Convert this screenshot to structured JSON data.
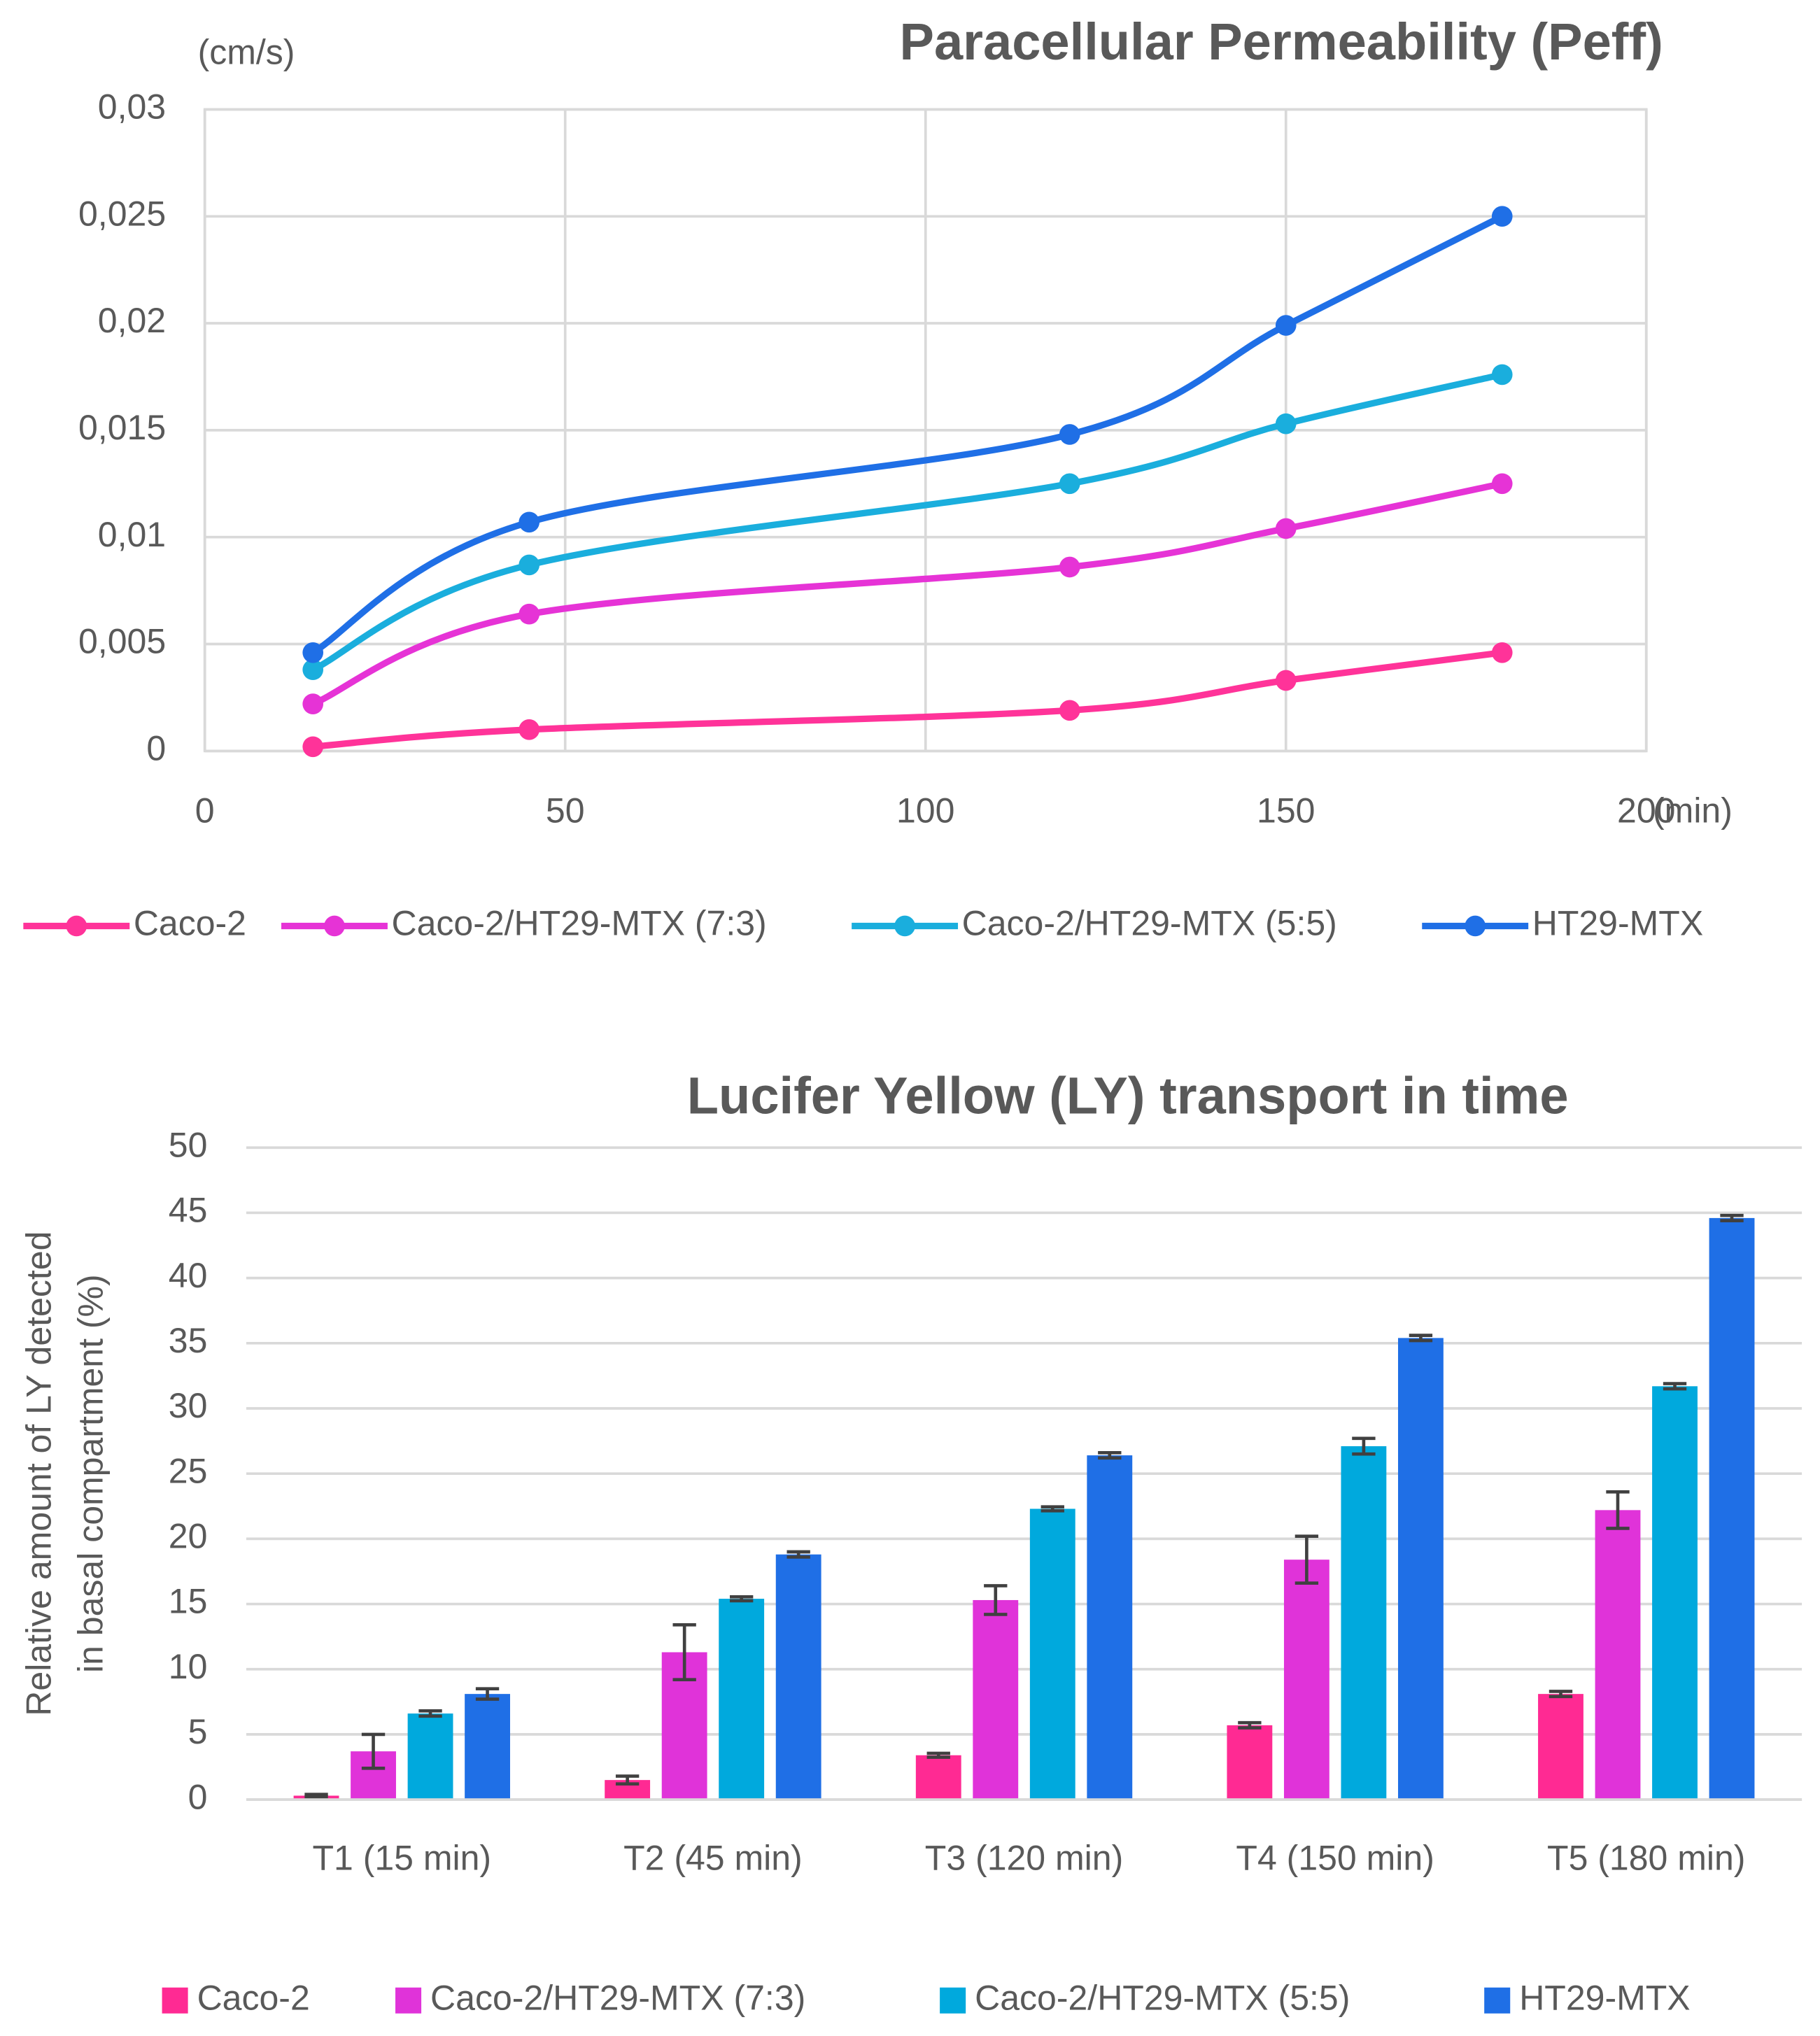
{
  "chart_data": [
    {
      "type": "line",
      "title": "Paracellular Permeability (Peff)",
      "ylabel": "(cm/s)",
      "xlabel": "(min)",
      "x": [
        15,
        45,
        120,
        150,
        180
      ],
      "xlim": [
        0,
        200
      ],
      "xticks": [
        0,
        50,
        100,
        150,
        200
      ],
      "ylim": [
        0,
        0.03
      ],
      "yticks": [
        0,
        {
          "value": 0.005,
          "label": "0,005"
        },
        {
          "value": 0.01,
          "label": "0,01"
        },
        {
          "value": 0.015,
          "label": "0,015"
        },
        {
          "value": 0.02,
          "label": "0,02"
        },
        {
          "value": 0.025,
          "label": "0,025"
        },
        {
          "value": 0.03,
          "label": "0,03"
        }
      ],
      "grid": true,
      "legend": "bottom",
      "series": [
        {
          "name": "Caco-2",
          "color": "#ff3399",
          "values": [
            0.0002,
            0.001,
            0.0019,
            0.0033,
            0.0046
          ]
        },
        {
          "name": "Caco-2/HT29-MTX (7:3)",
          "color": "#e633d6",
          "values": [
            0.0022,
            0.0064,
            0.0086,
            0.0104,
            0.0125
          ]
        },
        {
          "name": "Caco-2/HT29-MTX (5:5)",
          "color": "#1aaedd",
          "values": [
            0.0038,
            0.0087,
            0.0125,
            0.0153,
            0.0176
          ]
        },
        {
          "name": "HT29-MTX",
          "color": "#1f6fe6",
          "values": [
            0.0046,
            0.0107,
            0.0148,
            0.0199,
            0.025
          ]
        }
      ]
    },
    {
      "type": "bar",
      "title": "Lucifer Yellow (LY) transport in time",
      "ylabel": [
        "Relative amount of LY detected",
        "in basal compartment (%)"
      ],
      "categories": [
        "T1 (15 min)",
        "T2 (45 min)",
        "T3 (120 min)",
        "T4 (150 min)",
        "T5 (180 min)"
      ],
      "ylim": [
        0,
        50
      ],
      "yticks": [
        0,
        5,
        10,
        15,
        20,
        25,
        30,
        35,
        40,
        45,
        50
      ],
      "grid": true,
      "legend": "bottom",
      "series": [
        {
          "name": "Caco-2",
          "color": "#ff2a93",
          "values": [
            0.3,
            1.5,
            3.4,
            5.7,
            8.1
          ],
          "errors": [
            0.1,
            0.3,
            0.15,
            0.2,
            0.2
          ]
        },
        {
          "name": "Caco-2/HT29-MTX (7:3)",
          "color": "#e033d9",
          "values": [
            3.7,
            11.3,
            15.3,
            18.4,
            22.2
          ],
          "errors": [
            1.3,
            2.1,
            1.1,
            1.8,
            1.4
          ]
        },
        {
          "name": "Caco-2/HT29-MTX (5:5)",
          "color": "#00a9dd",
          "values": [
            6.6,
            15.4,
            22.3,
            27.1,
            31.7
          ],
          "errors": [
            0.2,
            0.15,
            0.15,
            0.6,
            0.2
          ]
        },
        {
          "name": "HT29-MTX",
          "color": "#1f6fe6",
          "values": [
            8.1,
            18.8,
            26.4,
            35.4,
            44.6
          ],
          "errors": [
            0.4,
            0.2,
            0.2,
            0.2,
            0.2
          ]
        }
      ]
    }
  ]
}
